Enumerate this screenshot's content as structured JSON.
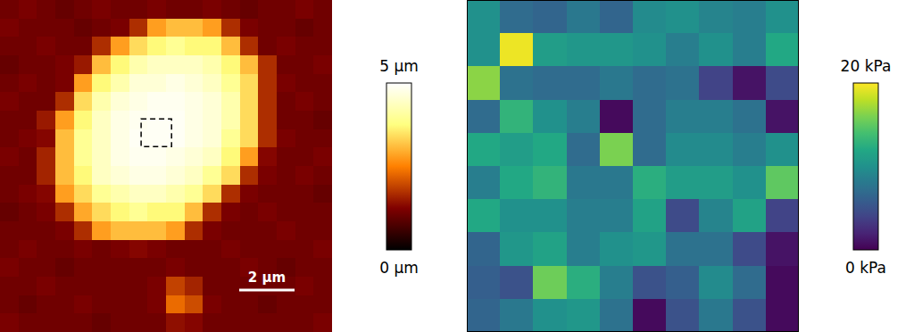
{
  "chart_data": [
    {
      "type": "heatmap",
      "color": "afmhot",
      "tick_labels": false,
      "xlim": [
        0,
        12
      ],
      "ylim": [
        0,
        12
      ],
      "cells": [
        [
          1.1,
          1.2,
          1.1,
          1.0,
          1.1,
          1.2,
          1.1,
          1.1,
          1.2,
          1.1,
          1.1,
          1.2,
          1.1,
          1.0,
          1.1,
          1.1,
          1.2,
          1.1
        ],
        [
          1.2,
          1.1,
          1.1,
          1.1,
          1.0,
          1.1,
          1.2,
          1.7,
          2.8,
          3.1,
          3.1,
          2.8,
          1.7,
          1.2,
          1.1,
          1.1,
          1.0,
          1.1
        ],
        [
          1.1,
          1.1,
          1.2,
          1.1,
          1.1,
          1.7,
          2.8,
          3.4,
          3.7,
          3.95,
          3.7,
          3.7,
          3.1,
          1.7,
          1.1,
          1.2,
          1.1,
          1.1
        ],
        [
          1.0,
          1.1,
          1.1,
          1.2,
          1.5,
          3.1,
          3.7,
          4.2,
          4.4,
          4.4,
          4.4,
          4.2,
          3.7,
          3.1,
          1.7,
          1.1,
          1.1,
          1.2
        ],
        [
          1.1,
          1.2,
          1.1,
          1.2,
          2.8,
          3.7,
          4.2,
          4.6,
          4.6,
          4.75,
          4.6,
          4.4,
          3.95,
          3.4,
          1.7,
          1.2,
          1.1,
          1.1
        ],
        [
          1.2,
          1.1,
          1.1,
          1.7,
          3.4,
          4.2,
          4.6,
          4.75,
          4.85,
          4.85,
          4.75,
          4.6,
          4.2,
          3.4,
          1.7,
          1.1,
          1.2,
          1.1
        ],
        [
          1.1,
          1.1,
          1.5,
          2.8,
          3.7,
          4.4,
          4.75,
          4.85,
          4.9,
          4.9,
          4.75,
          4.6,
          4.2,
          3.4,
          1.7,
          1.1,
          1.1,
          1.0
        ],
        [
          1.1,
          1.2,
          1.3,
          3.1,
          3.95,
          4.4,
          4.75,
          4.9,
          4.9,
          4.9,
          4.75,
          4.6,
          3.95,
          3.4,
          1.7,
          1.2,
          1.1,
          1.1
        ],
        [
          1.2,
          1.1,
          1.6,
          3.1,
          3.95,
          4.4,
          4.75,
          4.85,
          4.85,
          4.75,
          4.6,
          4.4,
          3.7,
          2.8,
          1.3,
          1.1,
          1.1,
          1.2
        ],
        [
          1.1,
          1.1,
          1.6,
          3.1,
          3.7,
          4.4,
          4.6,
          4.75,
          4.75,
          4.6,
          4.4,
          3.95,
          3.4,
          1.7,
          1.2,
          1.1,
          1.2,
          1.1
        ],
        [
          1.1,
          1.2,
          1.3,
          2.8,
          3.4,
          3.95,
          4.2,
          4.4,
          4.4,
          4.2,
          3.95,
          3.4,
          1.7,
          1.2,
          1.1,
          1.1,
          1.1,
          1.0
        ],
        [
          1.0,
          1.1,
          1.2,
          1.7,
          2.9,
          3.4,
          3.7,
          3.95,
          3.7,
          3.7,
          3.1,
          1.7,
          1.2,
          1.1,
          1.2,
          1.1,
          1.1,
          1.1
        ],
        [
          1.1,
          1.1,
          1.1,
          1.2,
          1.7,
          2.8,
          3.1,
          3.1,
          3.1,
          2.8,
          1.7,
          1.2,
          1.1,
          1.1,
          1.1,
          1.2,
          1.1,
          1.1
        ],
        [
          1.1,
          1.2,
          1.1,
          1.1,
          1.2,
          1.1,
          1.2,
          1.3,
          1.2,
          1.1,
          1.1,
          1.1,
          1.2,
          1.1,
          1.1,
          1.1,
          1.1,
          1.2
        ],
        [
          1.2,
          1.1,
          1.1,
          1.0,
          1.1,
          1.1,
          1.1,
          1.1,
          1.1,
          1.2,
          1.1,
          1.1,
          1.1,
          1.2,
          1.1,
          1.0,
          1.1,
          1.1
        ],
        [
          1.1,
          1.1,
          1.2,
          1.1,
          1.1,
          1.1,
          1.1,
          1.1,
          1.2,
          1.9,
          1.6,
          1.1,
          1.1,
          1.1,
          1.1,
          1.1,
          1.2,
          1.1
        ],
        [
          1.1,
          1.0,
          1.1,
          1.1,
          1.2,
          1.1,
          1.1,
          1.1,
          1.2,
          2.3,
          2.0,
          1.2,
          1.1,
          1.1,
          1.0,
          1.1,
          1.1,
          1.1
        ],
        [
          1.2,
          1.1,
          1.1,
          1.1,
          1.1,
          1.0,
          1.1,
          1.1,
          1.1,
          1.4,
          1.3,
          1.1,
          1.1,
          1.1,
          1.1,
          1.1,
          1.1,
          1.2
        ]
      ],
      "colorbar": {
        "range": [
          0,
          5
        ],
        "ticks": [
          {
            "value": 5,
            "label": "5 µm"
          },
          {
            "value": 0,
            "label": "0 µm"
          }
        ]
      },
      "scale_bar": {
        "value": 2,
        "label": "2 µm"
      },
      "roi": {
        "x": [
          5.1,
          6.2
        ],
        "y": [
          4.3,
          5.3
        ]
      }
    },
    {
      "type": "heatmap",
      "color": "viridis",
      "tick_labels": false,
      "cells": [
        [
          10,
          7,
          6.5,
          8,
          6.5,
          9.5,
          10,
          9,
          8.5,
          10
        ],
        [
          10,
          19.5,
          11,
          10.5,
          10.5,
          10,
          8.5,
          10,
          8.5,
          12
        ],
        [
          16.5,
          7.5,
          7,
          7,
          8,
          7,
          7.5,
          4,
          1,
          4.5
        ],
        [
          7,
          13,
          10,
          8.5,
          0.5,
          7,
          8.5,
          8.5,
          7.5,
          1
        ],
        [
          12,
          11,
          12,
          7,
          16,
          7,
          9.5,
          9.5,
          8.5,
          10
        ],
        [
          8.5,
          12,
          13,
          8,
          8,
          12.5,
          11,
          11,
          10,
          15
        ],
        [
          12,
          10,
          10,
          8.5,
          8.5,
          11.5,
          4.5,
          9,
          11.5,
          4
        ],
        [
          6.5,
          10.5,
          11.5,
          8.5,
          10,
          10.5,
          7.5,
          7.5,
          4.5,
          1
        ],
        [
          6,
          5,
          15.5,
          12.5,
          8.5,
          5,
          6,
          9.5,
          7,
          0.5
        ],
        [
          6.5,
          8,
          10,
          10.5,
          7.5,
          0.5,
          5,
          8,
          5,
          0.5
        ]
      ],
      "colorbar": {
        "range": [
          0,
          20
        ],
        "ticks": [
          {
            "value": 20,
            "label": "20 kPa"
          },
          {
            "value": 0,
            "label": "0 kPa"
          }
        ]
      }
    }
  ]
}
